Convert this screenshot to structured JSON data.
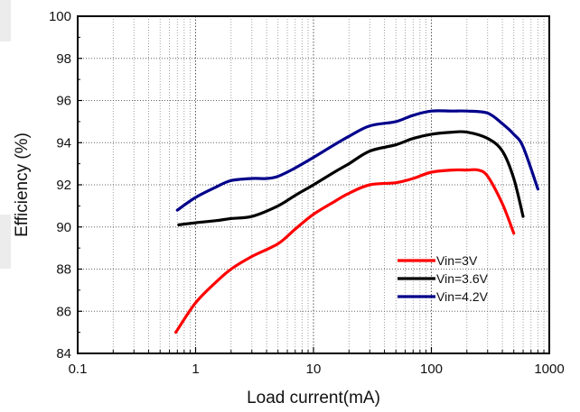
{
  "chart_data": {
    "type": "line",
    "title": "",
    "xlabel": "Load current(mA)",
    "ylabel": "Efficiency (%)",
    "xscale": "log",
    "xlim": [
      0.1,
      1000
    ],
    "ylim": [
      84,
      100
    ],
    "x_ticks": [
      "0.1",
      "1",
      "10",
      "100",
      "1000"
    ],
    "y_ticks": [
      "84",
      "86",
      "88",
      "90",
      "92",
      "94",
      "96",
      "98",
      "100"
    ],
    "grid": "dotted (major and minor)",
    "legend_position": "lower-right",
    "series": [
      {
        "name": "Vin=3V",
        "color": "#ff0000",
        "x": [
          0.68,
          1,
          1.5,
          2,
          3,
          5,
          7,
          10,
          15,
          20,
          30,
          50,
          70,
          100,
          150,
          200,
          250,
          300,
          400,
          500
        ],
        "y": [
          85.0,
          86.4,
          87.4,
          88.0,
          88.6,
          89.2,
          89.9,
          90.6,
          91.2,
          91.6,
          92.0,
          92.1,
          92.3,
          92.6,
          92.7,
          92.7,
          92.7,
          92.4,
          91.1,
          89.7
        ]
      },
      {
        "name": "Vin=3.6V",
        "color": "#000000",
        "x": [
          0.72,
          1,
          1.5,
          2,
          3,
          5,
          7,
          10,
          15,
          20,
          30,
          50,
          70,
          100,
          150,
          200,
          300,
          400,
          500,
          600
        ],
        "y": [
          90.1,
          90.2,
          90.3,
          90.4,
          90.5,
          91.0,
          91.5,
          92.0,
          92.6,
          93.0,
          93.6,
          93.9,
          94.2,
          94.4,
          94.5,
          94.5,
          94.2,
          93.6,
          92.3,
          90.5
        ]
      },
      {
        "name": "Vin=4.2V",
        "color": "#00008b",
        "x": [
          0.7,
          1,
          1.5,
          2,
          3,
          4,
          5,
          7,
          10,
          15,
          20,
          30,
          50,
          70,
          100,
          150,
          200,
          300,
          400,
          500,
          600,
          800
        ],
        "y": [
          90.8,
          91.4,
          91.9,
          92.2,
          92.3,
          92.3,
          92.4,
          92.8,
          93.3,
          93.9,
          94.3,
          94.8,
          95.0,
          95.3,
          95.5,
          95.5,
          95.5,
          95.4,
          94.9,
          94.4,
          93.8,
          91.8
        ]
      }
    ]
  }
}
